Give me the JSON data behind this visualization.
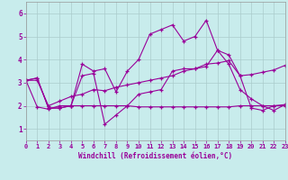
{
  "background_color": "#c8ecec",
  "xlabel": "Windchill (Refroidissement éolien,°C)",
  "xlim": [
    0,
    23
  ],
  "ylim": [
    0.5,
    6.5
  ],
  "yticks": [
    1,
    2,
    3,
    4,
    5,
    6
  ],
  "xticks": [
    0,
    1,
    2,
    3,
    4,
    5,
    6,
    7,
    8,
    9,
    10,
    11,
    12,
    13,
    14,
    15,
    16,
    17,
    18,
    19,
    20,
    21,
    22,
    23
  ],
  "line_color": "#990099",
  "grid_color": "#aacccc",
  "lines": [
    [
      3.1,
      3.2,
      1.9,
      1.9,
      2.0,
      3.8,
      3.5,
      3.6,
      2.6,
      3.5,
      4.0,
      5.1,
      5.3,
      5.5,
      4.8,
      5.0,
      5.7,
      4.4,
      4.2,
      3.3,
      1.9,
      1.8,
      2.0,
      2.05
    ],
    [
      3.1,
      3.2,
      1.9,
      1.9,
      2.0,
      3.3,
      3.4,
      1.2,
      1.6,
      2.0,
      2.5,
      2.6,
      2.7,
      3.5,
      3.6,
      3.6,
      3.7,
      4.4,
      3.8,
      2.7,
      2.3,
      2.0,
      1.8,
      2.05
    ],
    [
      3.1,
      1.95,
      1.85,
      2.0,
      2.0,
      2.0,
      2.0,
      2.0,
      2.0,
      2.0,
      1.95,
      1.95,
      1.95,
      1.95,
      1.95,
      1.95,
      1.95,
      1.95,
      1.95,
      2.0,
      2.0,
      2.0,
      2.0,
      2.0
    ],
    [
      3.1,
      3.1,
      2.0,
      2.2,
      2.4,
      2.5,
      2.7,
      2.65,
      2.8,
      2.9,
      3.0,
      3.1,
      3.2,
      3.3,
      3.5,
      3.6,
      3.8,
      3.85,
      3.95,
      3.3,
      3.35,
      3.45,
      3.55,
      3.75
    ]
  ]
}
